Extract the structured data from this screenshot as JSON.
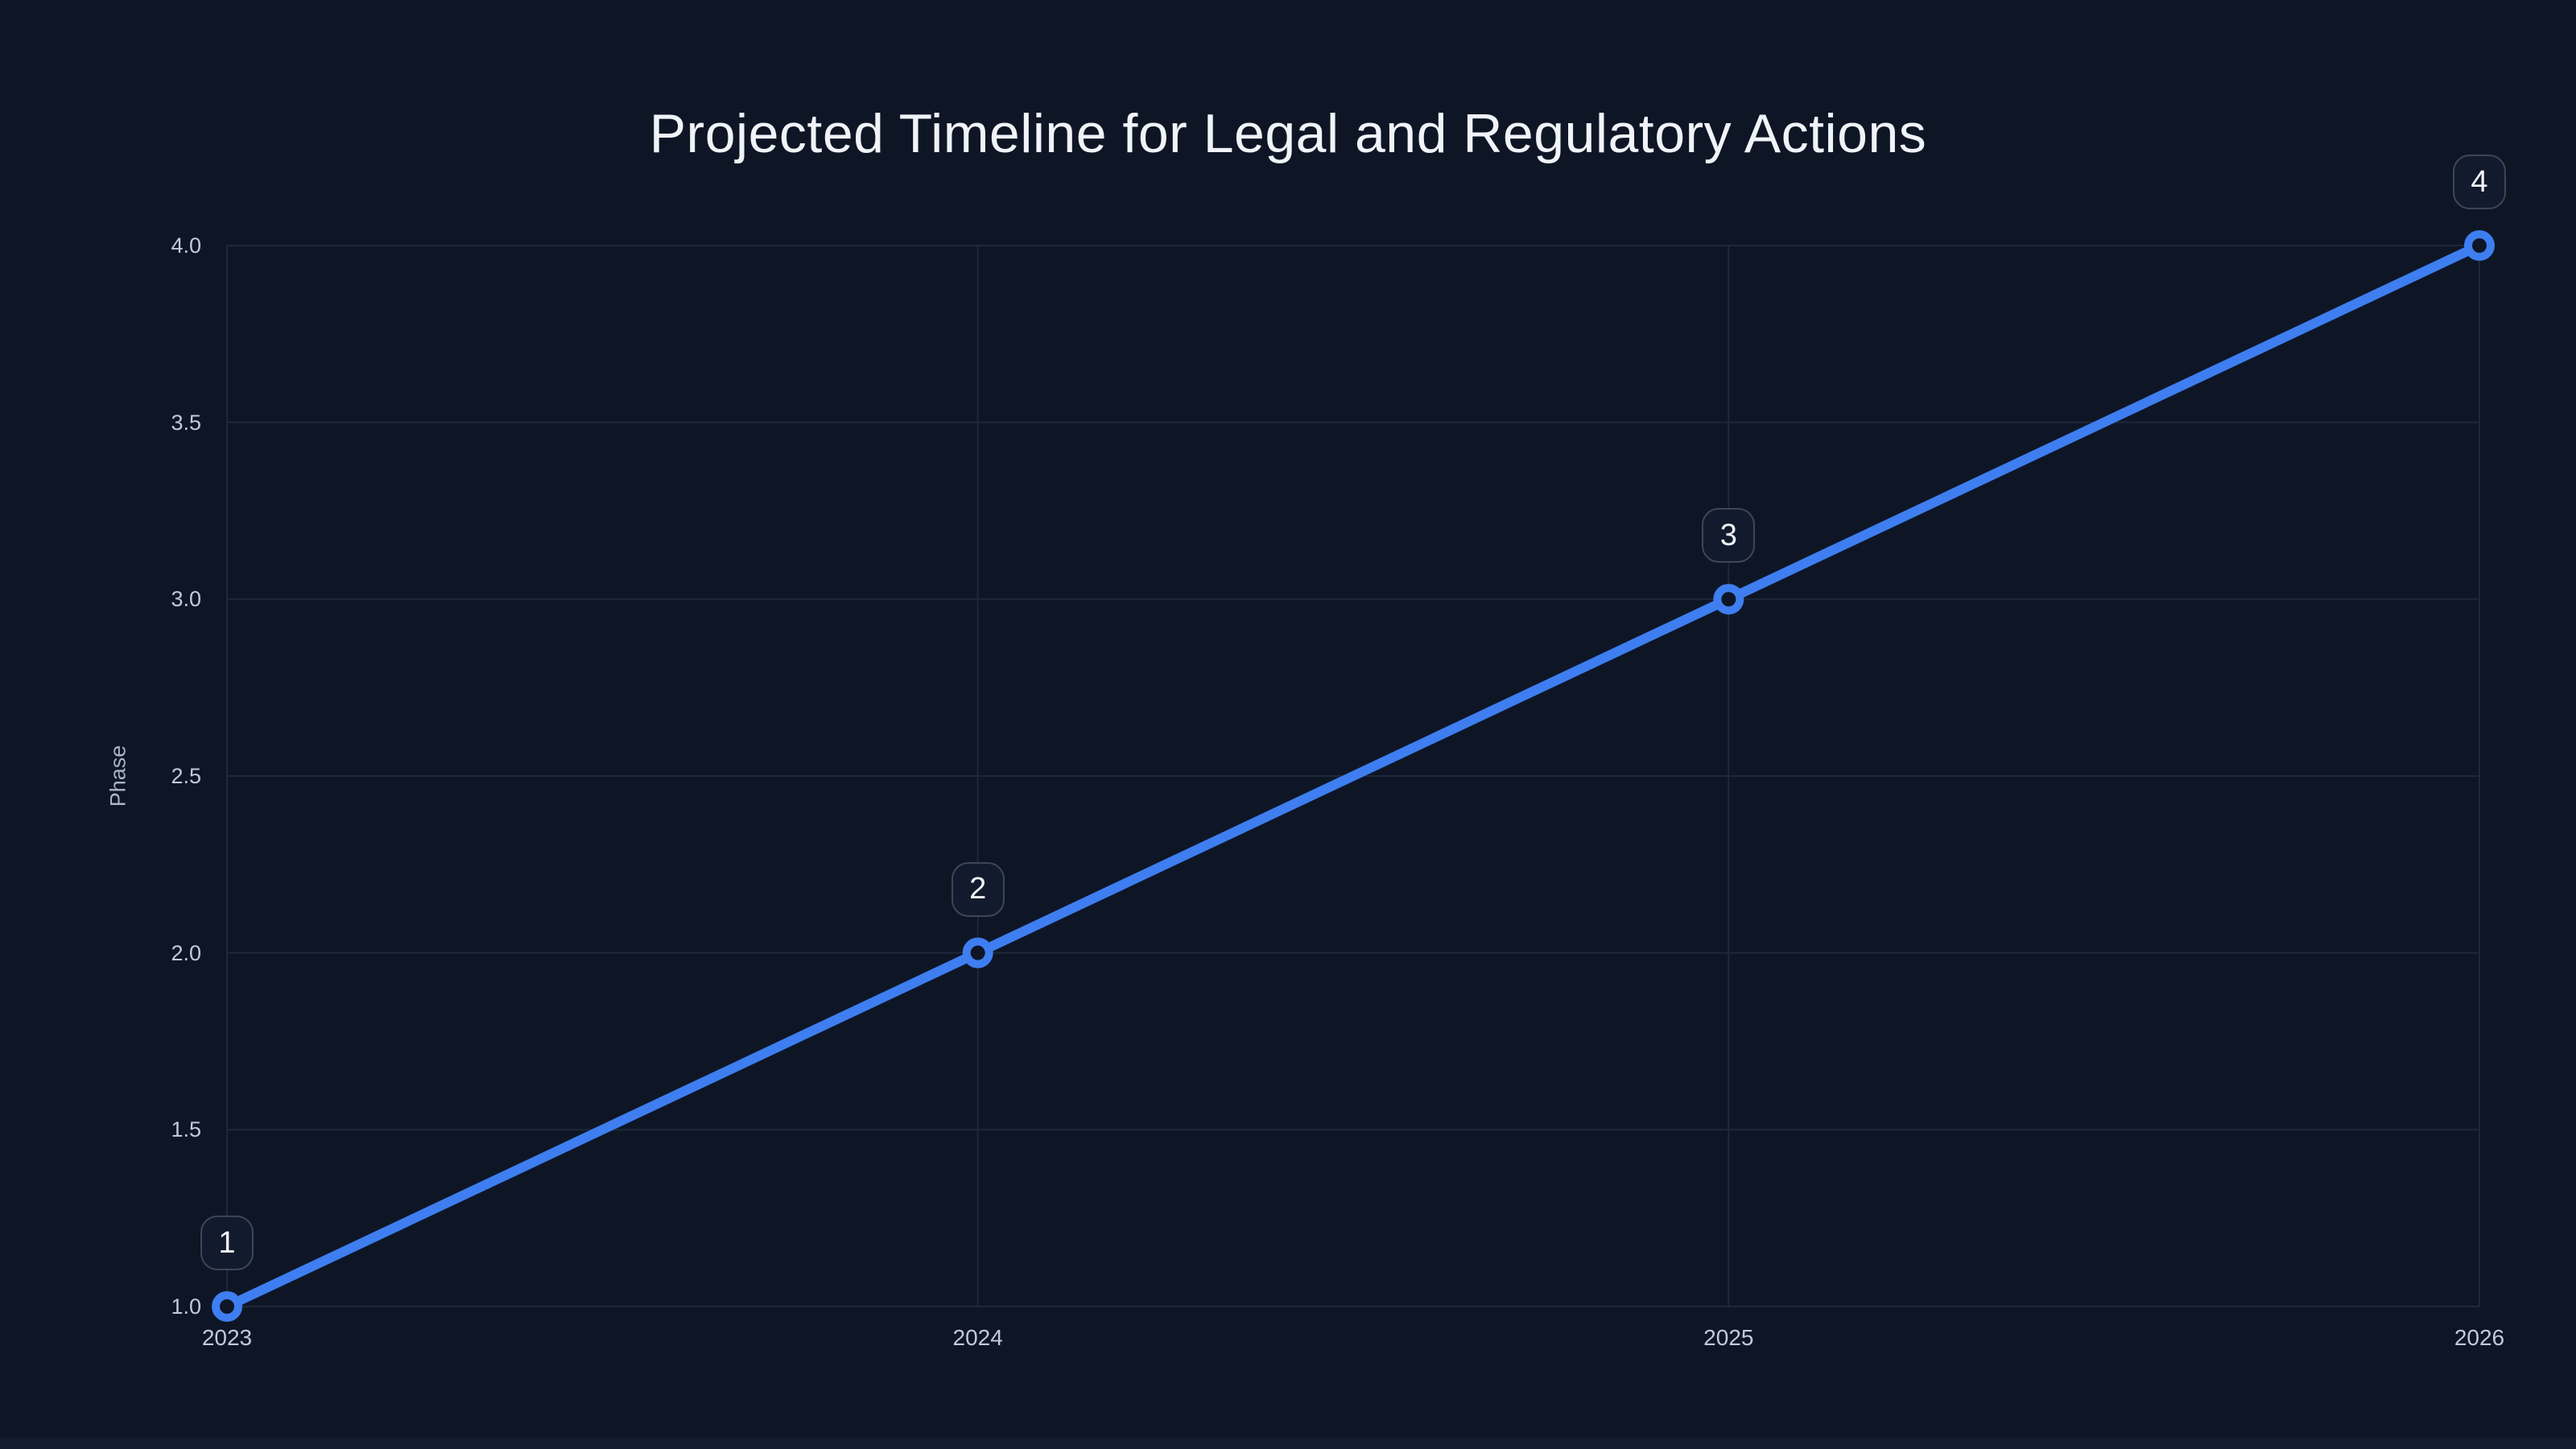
{
  "chart_data": {
    "type": "line",
    "title": "Projected Timeline for Legal and Regulatory Actions",
    "xlabel": "",
    "ylabel": "Phase",
    "x": [
      2023,
      2024,
      2025,
      2026
    ],
    "series": [
      {
        "name": "Phase",
        "values": [
          1,
          2,
          3,
          4
        ]
      }
    ],
    "point_labels": [
      "1",
      "2",
      "3",
      "4"
    ],
    "x_tick_labels": [
      "2023",
      "2024",
      "2025",
      "2026"
    ],
    "y_tick_values": [
      1.0,
      1.5,
      2.0,
      2.5,
      3.0,
      3.5,
      4.0
    ],
    "y_tick_labels": [
      "1.0",
      "1.5",
      "2.0",
      "2.5",
      "3.0",
      "3.5",
      "4.0"
    ],
    "xlim": [
      2023,
      2026
    ],
    "ylim": [
      1.0,
      4.0
    ],
    "grid": true,
    "legend": false,
    "colors": {
      "background": "#0e1626",
      "bottom_strip": "#141c30",
      "line": "#3e7ef0",
      "marker_ring": "#3e7ef0",
      "marker_fill": "#0e1626",
      "gridline": "#1e2839",
      "tick_label": "#c2cad9",
      "title_text": "#f0f3f8",
      "axis_title_text": "#a9b4c8",
      "badge_border": "#3d4558",
      "badge_background": "#121a2d",
      "badge_text": "#f2f5fa"
    }
  }
}
